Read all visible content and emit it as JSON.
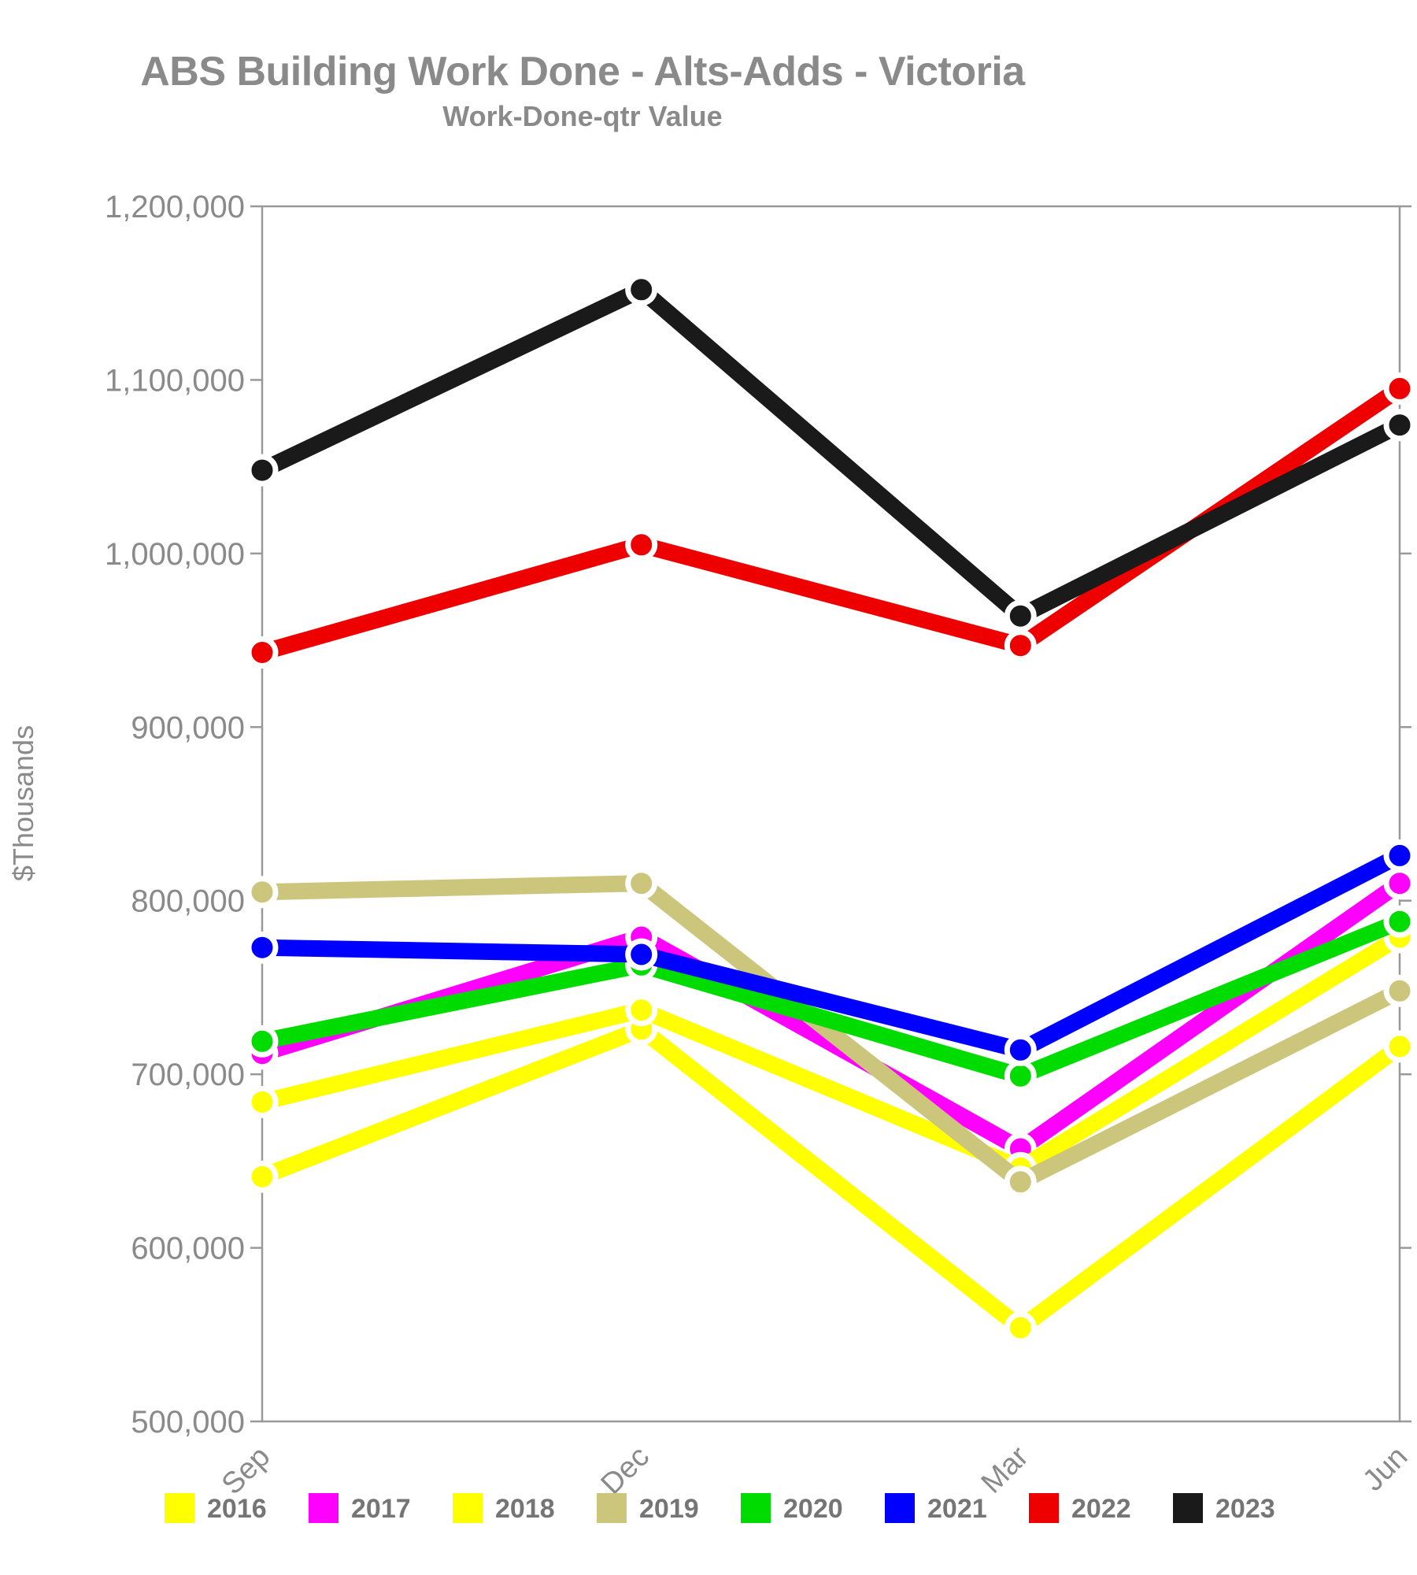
{
  "header": {
    "title": "ABS Building Work Done - Alts-Adds - Victoria",
    "subtitle": "Work-Done-qtr Value"
  },
  "y_axis": {
    "title": "$Thousands",
    "tick_labels": [
      "1,200,000",
      "1,100,000",
      "1,000,000",
      "900,000",
      "800,000",
      "700,000",
      "600,000",
      "500,000"
    ]
  },
  "x_axis": {
    "tick_labels": [
      "Sep",
      "Dec",
      "Mar",
      "Jun"
    ]
  },
  "colors": {
    "axis_line": "#999999",
    "label_gray": "#8a8a8a",
    "legend_gray": "#757575",
    "point_outline": "#ffffff"
  },
  "chart_data": {
    "type": "line",
    "title": "ABS Building Work Done - Alts-Adds - Victoria",
    "subtitle": "Work-Done-qtr Value",
    "ylabel": "$Thousands",
    "categories": [
      "Sep",
      "Dec",
      "Mar",
      "Jun"
    ],
    "ylim": [
      500000,
      1200000
    ],
    "ytick_step": 100000,
    "grid": false,
    "legend_position": "bottom",
    "series": [
      {
        "name": "2016",
        "color": "#ffff00",
        "values": [
          641000,
          726000,
          554000,
          716000
        ]
      },
      {
        "name": "2017",
        "color": "#ff00ff",
        "values": [
          712000,
          779000,
          657000,
          810000
        ]
      },
      {
        "name": "2018",
        "color": "#ffff00",
        "values": [
          684000,
          737000,
          646000,
          779000
        ]
      },
      {
        "name": "2019",
        "color": "#ccc57c",
        "values": [
          805000,
          810000,
          638000,
          748000
        ]
      },
      {
        "name": "2020",
        "color": "#00dc00",
        "values": [
          719000,
          763000,
          699000,
          788000
        ]
      },
      {
        "name": "2021",
        "color": "#0000ff",
        "values": [
          773000,
          769000,
          714000,
          826000
        ]
      },
      {
        "name": "2022",
        "color": "#ee0000",
        "values": [
          943000,
          1005000,
          947000,
          1095000
        ]
      },
      {
        "name": "2023",
        "color": "#1a1a1a",
        "values": [
          1048000,
          1152000,
          964000,
          1074000
        ]
      }
    ]
  }
}
